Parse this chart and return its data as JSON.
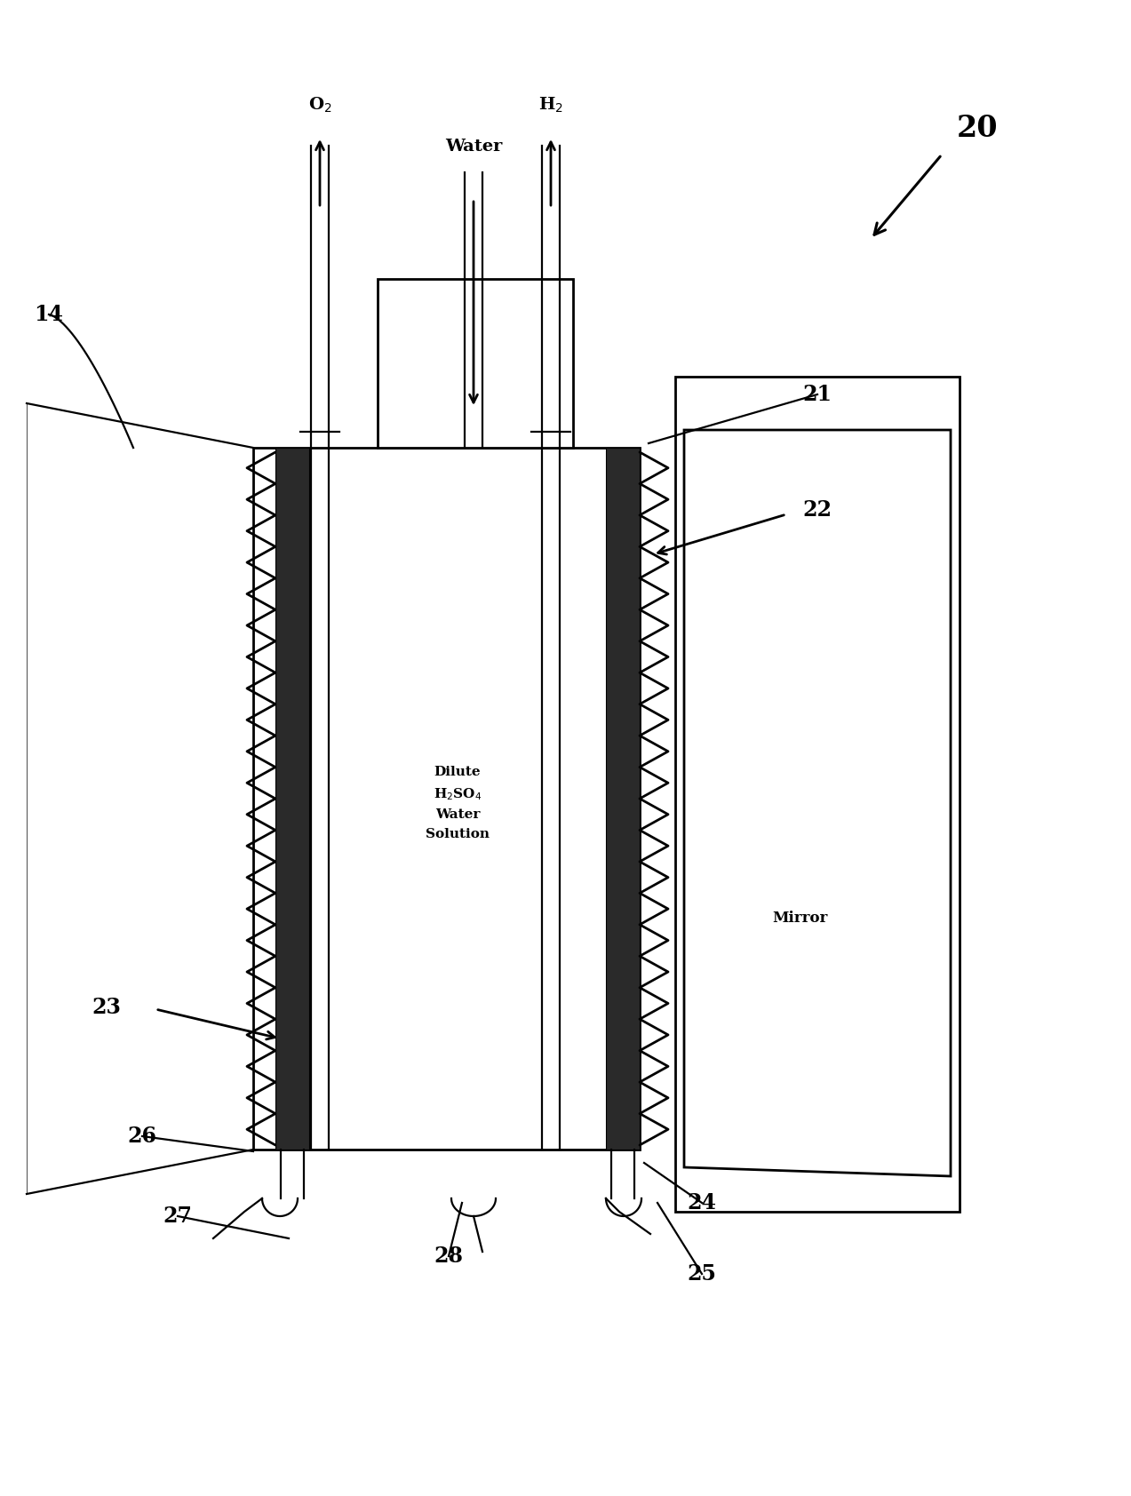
{
  "background_color": "#ffffff",
  "line_color": "#000000",
  "label_20": "20",
  "label_14": "14",
  "label_21": "21",
  "label_22": "22",
  "label_23": "23",
  "label_24": "24",
  "label_25": "25",
  "label_26": "26",
  "label_27": "27",
  "label_28": "28",
  "text_water": "Water",
  "text_o2": "O$_2$",
  "text_h2": "H$_2$",
  "text_dilute": "Dilute\nH$_2$SO$_4$\nWater\nSolution",
  "text_mirror": "Mirror"
}
